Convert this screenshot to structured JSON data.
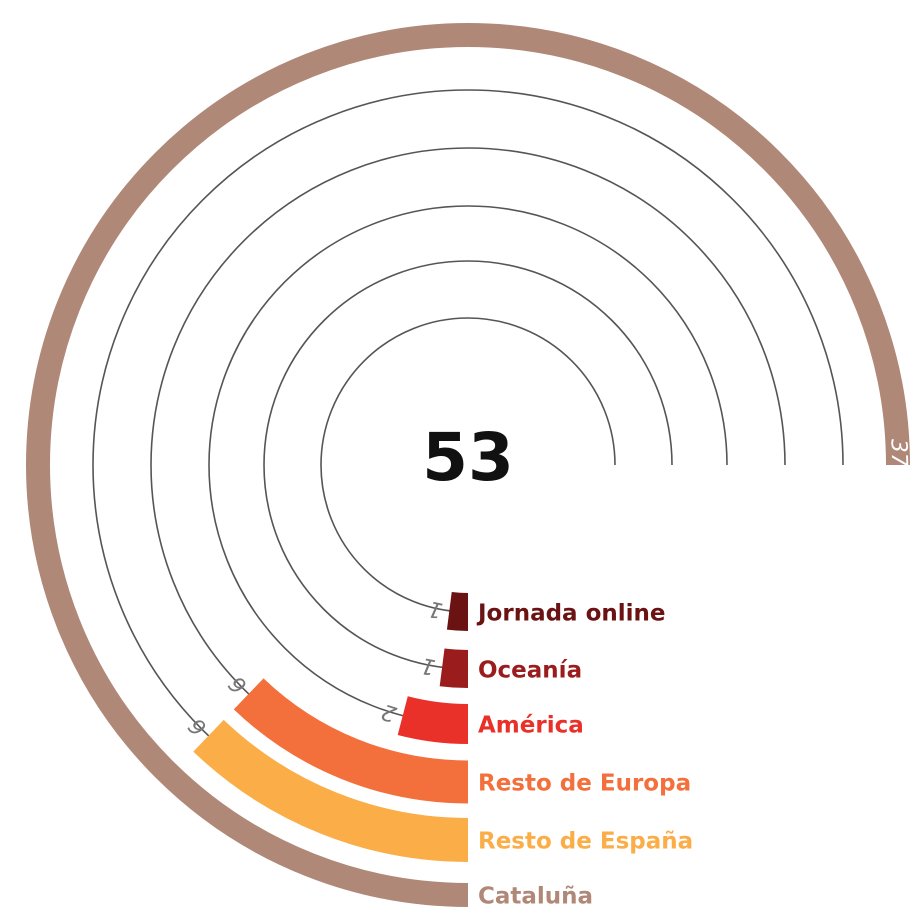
{
  "chart_data": {
    "type": "radial-bar",
    "total": 53,
    "categories": [
      "Jornada online",
      "Oceanía",
      "América",
      "Resto de Europa",
      "Resto de España",
      "Cataluña"
    ],
    "values": [
      1,
      1,
      2,
      6,
      6,
      37
    ],
    "colors": [
      "#6b1212",
      "#9b1c1c",
      "#ea3129",
      "#f36f3b",
      "#fbae48",
      "#b08878"
    ]
  }
}
